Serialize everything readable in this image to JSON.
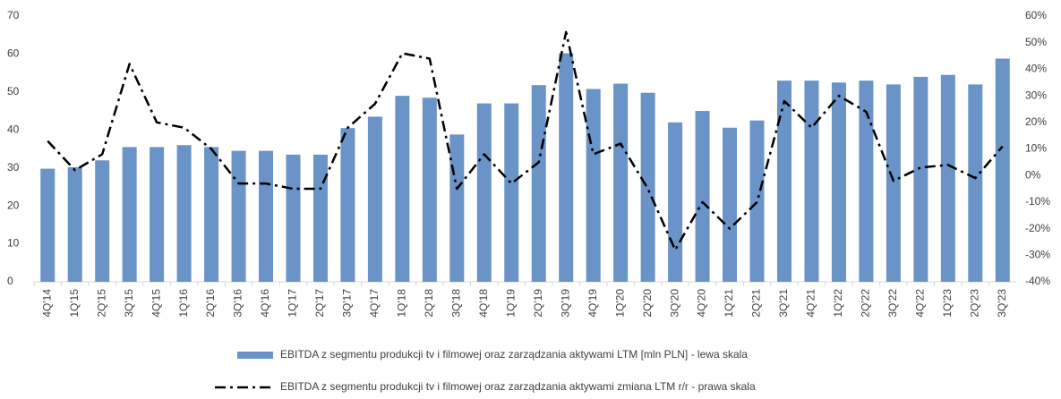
{
  "chart_data": {
    "type": "bar",
    "categories": [
      "4Q'14",
      "1Q'15",
      "2Q'15",
      "3Q'15",
      "4Q'15",
      "1Q'16",
      "2Q'16",
      "3Q'16",
      "4Q'16",
      "1Q'17",
      "2Q'17",
      "3Q'17",
      "4Q'17",
      "1Q'18",
      "2Q'18",
      "3Q'18",
      "4Q'18",
      "1Q'19",
      "2Q'19",
      "3Q'19",
      "4Q'19",
      "1Q'20",
      "2Q'20",
      "3Q'20",
      "4Q'20",
      "1Q'21",
      "2Q'21",
      "3Q'21",
      "4Q'21",
      "1Q'22",
      "2Q'22",
      "3Q'22",
      "4Q'22",
      "1Q'23",
      "2Q'23",
      "3Q'23"
    ],
    "series": [
      {
        "name": "EBITDA z segmentu produkcji tv i filmowej oraz zarządzania aktywami LTM [mln PLN] - lewa skala",
        "type": "bar",
        "color": "#6a93c8",
        "values": [
          29.8,
          30.2,
          32.0,
          35.5,
          35.5,
          36.0,
          35.5,
          34.5,
          34.5,
          33.5,
          33.5,
          40.5,
          43.5,
          49.0,
          48.5,
          38.8,
          47.0,
          47.0,
          51.8,
          60.2,
          50.8,
          52.2,
          49.8,
          42.0,
          45.0,
          40.6,
          42.5,
          53.0,
          53.0,
          52.5,
          53.0,
          52.0,
          54.0,
          54.5,
          52.0,
          58.8
        ]
      },
      {
        "name": "EBITDA z segmentu produkcji tv i filmowej oraz zarządzania aktywami zmiana LTM r/r - prawa skala",
        "type": "line",
        "axis": "y2",
        "color": "#000000",
        "values": [
          13,
          2,
          8,
          42,
          20,
          18,
          10,
          -3,
          -3,
          -5,
          -5,
          18,
          27,
          46,
          44,
          -5,
          8,
          -3,
          5,
          54,
          8,
          12,
          -5,
          -28,
          -10,
          -20,
          -10,
          28,
          18,
          30,
          24,
          -2,
          3,
          4,
          -1,
          11
        ]
      }
    ],
    "ylim": [
      0,
      70
    ],
    "yticks": [
      0,
      10,
      20,
      30,
      40,
      50,
      60,
      70
    ],
    "y2lim": [
      -40,
      60
    ],
    "y2ticks": [
      {
        "value": 60,
        "label": "60%"
      },
      {
        "value": 50,
        "label": "50%"
      },
      {
        "value": 40,
        "label": "40%"
      },
      {
        "value": 30,
        "label": "30%"
      },
      {
        "value": 20,
        "label": "20%"
      },
      {
        "value": 10,
        "label": "10%"
      },
      {
        "value": 0,
        "label": "0%"
      },
      {
        "value": -10,
        "label": "-10%"
      },
      {
        "value": -20,
        "label": "-20%"
      },
      {
        "value": -30,
        "label": "-30%"
      },
      {
        "value": -40,
        "label": "-40%"
      }
    ],
    "grid": false
  }
}
